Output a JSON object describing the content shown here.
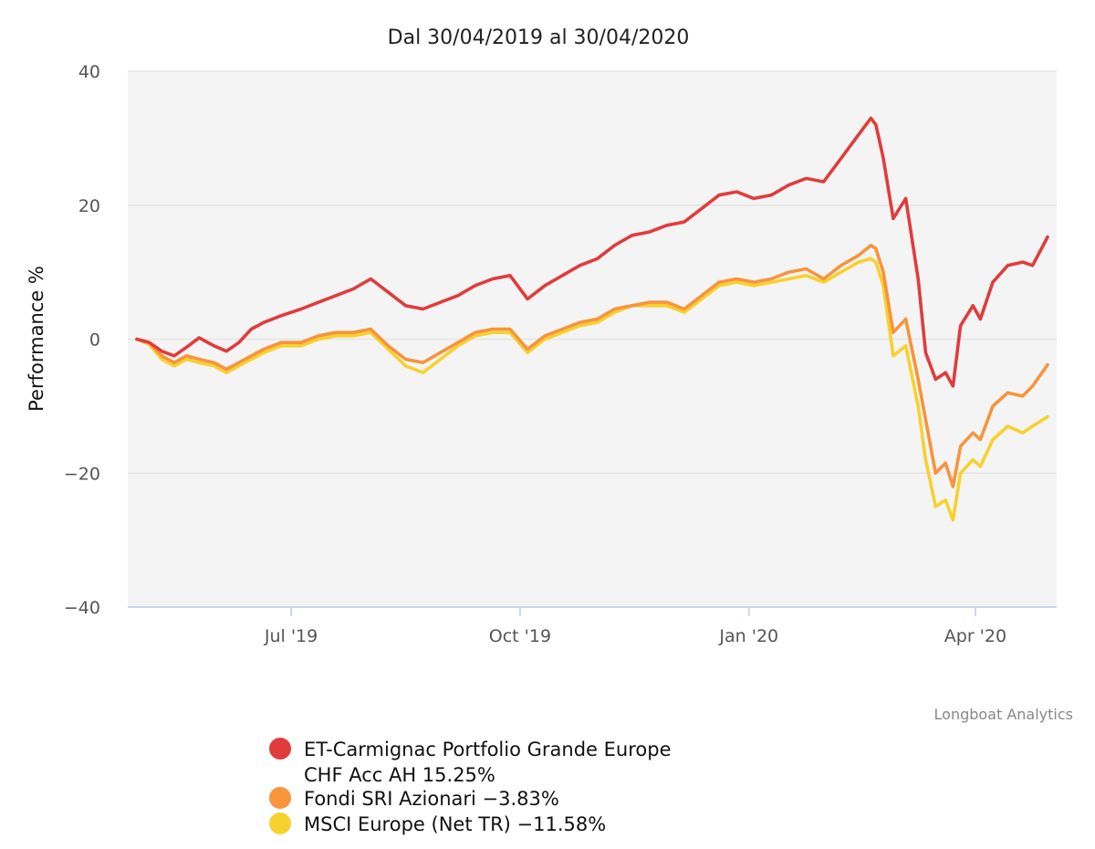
{
  "colors": {
    "plot_background": "#f4f4f4",
    "axis": "#ccd6eb",
    "grid": "#e4e4e4"
  },
  "chart_data": {
    "type": "line",
    "title": "Dal 30/04/2019 al 30/04/2020",
    "ylabel": "Performance %",
    "xlabel": "",
    "ylim": [
      -40,
      40
    ],
    "yticks": [
      40,
      20,
      0,
      -20,
      -40
    ],
    "yticklabels": [
      "40",
      "20",
      "0",
      "−20",
      "−40"
    ],
    "xlim": [
      "2019-04-30",
      "2020-04-30"
    ],
    "xticks": [
      {
        "date": "2019-07-01",
        "label": "Jul '19"
      },
      {
        "date": "2019-10-01",
        "label": "Oct '19"
      },
      {
        "date": "2020-01-01",
        "label": "Jan '20"
      },
      {
        "date": "2020-04-01",
        "label": "Apr '20"
      }
    ],
    "grid": true,
    "legend_position": "bottom",
    "credit": "Longboat Analytics",
    "series": [
      {
        "name": "ET-Carmignac Portfolio Grande Europe CHF Acc AH",
        "legend_lines": [
          "ET-Carmignac Portfolio Grande Europe",
          "CHF Acc AH 15.25%"
        ],
        "color": "#e03c3c",
        "points": [
          [
            "2019-04-30",
            0
          ],
          [
            "2019-05-05",
            -0.5
          ],
          [
            "2019-05-10",
            -1.8
          ],
          [
            "2019-05-15",
            -2.5
          ],
          [
            "2019-05-20",
            -1.2
          ],
          [
            "2019-05-25",
            0.2
          ],
          [
            "2019-05-31",
            -1.0
          ],
          [
            "2019-06-05",
            -1.8
          ],
          [
            "2019-06-10",
            -0.5
          ],
          [
            "2019-06-15",
            1.5
          ],
          [
            "2019-06-20",
            2.5
          ],
          [
            "2019-06-27",
            3.5
          ],
          [
            "2019-07-05",
            4.5
          ],
          [
            "2019-07-12",
            5.5
          ],
          [
            "2019-07-19",
            6.5
          ],
          [
            "2019-07-26",
            7.5
          ],
          [
            "2019-08-02",
            9.0
          ],
          [
            "2019-08-09",
            7.0
          ],
          [
            "2019-08-16",
            5.0
          ],
          [
            "2019-08-23",
            4.5
          ],
          [
            "2019-08-30",
            5.5
          ],
          [
            "2019-09-06",
            6.5
          ],
          [
            "2019-09-13",
            8.0
          ],
          [
            "2019-09-20",
            9.0
          ],
          [
            "2019-09-27",
            9.5
          ],
          [
            "2019-10-04",
            6.0
          ],
          [
            "2019-10-11",
            8.0
          ],
          [
            "2019-10-18",
            9.5
          ],
          [
            "2019-10-25",
            11.0
          ],
          [
            "2019-11-01",
            12.0
          ],
          [
            "2019-11-08",
            14.0
          ],
          [
            "2019-11-15",
            15.5
          ],
          [
            "2019-11-22",
            16.0
          ],
          [
            "2019-11-29",
            17.0
          ],
          [
            "2019-12-06",
            17.5
          ],
          [
            "2019-12-13",
            19.5
          ],
          [
            "2019-12-20",
            21.5
          ],
          [
            "2019-12-27",
            22.0
          ],
          [
            "2020-01-03",
            21.0
          ],
          [
            "2020-01-10",
            21.5
          ],
          [
            "2020-01-17",
            23.0
          ],
          [
            "2020-01-24",
            24.0
          ],
          [
            "2020-01-31",
            23.5
          ],
          [
            "2020-02-07",
            27.0
          ],
          [
            "2020-02-14",
            30.5
          ],
          [
            "2020-02-19",
            33.0
          ],
          [
            "2020-02-21",
            32.0
          ],
          [
            "2020-02-24",
            27.0
          ],
          [
            "2020-02-28",
            18.0
          ],
          [
            "2020-03-04",
            21.0
          ],
          [
            "2020-03-09",
            9.0
          ],
          [
            "2020-03-12",
            -2.0
          ],
          [
            "2020-03-16",
            -6.0
          ],
          [
            "2020-03-20",
            -5.0
          ],
          [
            "2020-03-23",
            -7.0
          ],
          [
            "2020-03-26",
            2.0
          ],
          [
            "2020-03-31",
            5.0
          ],
          [
            "2020-04-03",
            3.0
          ],
          [
            "2020-04-08",
            8.5
          ],
          [
            "2020-04-14",
            11.0
          ],
          [
            "2020-04-20",
            11.5
          ],
          [
            "2020-04-24",
            11.0
          ],
          [
            "2020-04-30",
            15.25
          ]
        ]
      },
      {
        "name": "Fondi SRI Azionari",
        "legend_lines": [
          "Fondi SRI Azionari −3.83%"
        ],
        "color": "#f7943c",
        "points": [
          [
            "2019-04-30",
            0
          ],
          [
            "2019-05-05",
            -0.5
          ],
          [
            "2019-05-10",
            -2.5
          ],
          [
            "2019-05-15",
            -3.5
          ],
          [
            "2019-05-20",
            -2.5
          ],
          [
            "2019-05-25",
            -3.0
          ],
          [
            "2019-05-31",
            -3.5
          ],
          [
            "2019-06-05",
            -4.5
          ],
          [
            "2019-06-10",
            -3.5
          ],
          [
            "2019-06-15",
            -2.5
          ],
          [
            "2019-06-20",
            -1.5
          ],
          [
            "2019-06-27",
            -0.5
          ],
          [
            "2019-07-05",
            -0.5
          ],
          [
            "2019-07-12",
            0.5
          ],
          [
            "2019-07-19",
            1.0
          ],
          [
            "2019-07-26",
            1.0
          ],
          [
            "2019-08-02",
            1.5
          ],
          [
            "2019-08-09",
            -1.0
          ],
          [
            "2019-08-16",
            -3.0
          ],
          [
            "2019-08-23",
            -3.5
          ],
          [
            "2019-08-30",
            -2.0
          ],
          [
            "2019-09-06",
            -0.5
          ],
          [
            "2019-09-13",
            1.0
          ],
          [
            "2019-09-20",
            1.5
          ],
          [
            "2019-09-27",
            1.5
          ],
          [
            "2019-10-04",
            -1.5
          ],
          [
            "2019-10-11",
            0.5
          ],
          [
            "2019-10-18",
            1.5
          ],
          [
            "2019-10-25",
            2.5
          ],
          [
            "2019-11-01",
            3.0
          ],
          [
            "2019-11-08",
            4.5
          ],
          [
            "2019-11-15",
            5.0
          ],
          [
            "2019-11-22",
            5.5
          ],
          [
            "2019-11-29",
            5.5
          ],
          [
            "2019-12-06",
            4.5
          ],
          [
            "2019-12-13",
            6.5
          ],
          [
            "2019-12-20",
            8.5
          ],
          [
            "2019-12-27",
            9.0
          ],
          [
            "2020-01-03",
            8.5
          ],
          [
            "2020-01-10",
            9.0
          ],
          [
            "2020-01-17",
            10.0
          ],
          [
            "2020-01-24",
            10.5
          ],
          [
            "2020-01-31",
            9.0
          ],
          [
            "2020-02-07",
            11.0
          ],
          [
            "2020-02-14",
            12.5
          ],
          [
            "2020-02-19",
            14.0
          ],
          [
            "2020-02-21",
            13.5
          ],
          [
            "2020-02-24",
            10.0
          ],
          [
            "2020-02-28",
            1.0
          ],
          [
            "2020-03-04",
            3.0
          ],
          [
            "2020-03-09",
            -6.0
          ],
          [
            "2020-03-12",
            -12.0
          ],
          [
            "2020-03-16",
            -20.0
          ],
          [
            "2020-03-20",
            -18.5
          ],
          [
            "2020-03-23",
            -22.0
          ],
          [
            "2020-03-26",
            -16.0
          ],
          [
            "2020-03-31",
            -14.0
          ],
          [
            "2020-04-03",
            -15.0
          ],
          [
            "2020-04-08",
            -10.0
          ],
          [
            "2020-04-14",
            -8.0
          ],
          [
            "2020-04-20",
            -8.5
          ],
          [
            "2020-04-24",
            -7.0
          ],
          [
            "2020-04-30",
            -3.83
          ]
        ]
      },
      {
        "name": "MSCI Europe (Net TR)",
        "legend_lines": [
          "MSCI Europe (Net TR) −11.58%"
        ],
        "color": "#f7d12e",
        "points": [
          [
            "2019-04-30",
            0
          ],
          [
            "2019-05-05",
            -0.8
          ],
          [
            "2019-05-10",
            -3.0
          ],
          [
            "2019-05-15",
            -4.0
          ],
          [
            "2019-05-20",
            -3.0
          ],
          [
            "2019-05-25",
            -3.5
          ],
          [
            "2019-05-31",
            -4.0
          ],
          [
            "2019-06-05",
            -5.0
          ],
          [
            "2019-06-10",
            -4.0
          ],
          [
            "2019-06-15",
            -3.0
          ],
          [
            "2019-06-20",
            -2.0
          ],
          [
            "2019-06-27",
            -1.0
          ],
          [
            "2019-07-05",
            -1.0
          ],
          [
            "2019-07-12",
            0.0
          ],
          [
            "2019-07-19",
            0.5
          ],
          [
            "2019-07-26",
            0.5
          ],
          [
            "2019-08-02",
            1.0
          ],
          [
            "2019-08-09",
            -1.5
          ],
          [
            "2019-08-16",
            -4.0
          ],
          [
            "2019-08-23",
            -5.0
          ],
          [
            "2019-08-30",
            -3.0
          ],
          [
            "2019-09-06",
            -1.0
          ],
          [
            "2019-09-13",
            0.5
          ],
          [
            "2019-09-20",
            1.0
          ],
          [
            "2019-09-27",
            1.0
          ],
          [
            "2019-10-04",
            -2.0
          ],
          [
            "2019-10-11",
            0.0
          ],
          [
            "2019-10-18",
            1.0
          ],
          [
            "2019-10-25",
            2.0
          ],
          [
            "2019-11-01",
            2.5
          ],
          [
            "2019-11-08",
            4.0
          ],
          [
            "2019-11-15",
            5.0
          ],
          [
            "2019-11-22",
            5.0
          ],
          [
            "2019-11-29",
            5.0
          ],
          [
            "2019-12-06",
            4.0
          ],
          [
            "2019-12-13",
            6.0
          ],
          [
            "2019-12-20",
            8.0
          ],
          [
            "2019-12-27",
            8.5
          ],
          [
            "2020-01-03",
            8.0
          ],
          [
            "2020-01-10",
            8.5
          ],
          [
            "2020-01-17",
            9.0
          ],
          [
            "2020-01-24",
            9.5
          ],
          [
            "2020-01-31",
            8.5
          ],
          [
            "2020-02-07",
            10.0
          ],
          [
            "2020-02-14",
            11.5
          ],
          [
            "2020-02-19",
            12.0
          ],
          [
            "2020-02-21",
            11.5
          ],
          [
            "2020-02-24",
            8.0
          ],
          [
            "2020-02-28",
            -2.5
          ],
          [
            "2020-03-04",
            -1.0
          ],
          [
            "2020-03-09",
            -10.0
          ],
          [
            "2020-03-12",
            -18.0
          ],
          [
            "2020-03-16",
            -25.0
          ],
          [
            "2020-03-20",
            -24.0
          ],
          [
            "2020-03-23",
            -27.0
          ],
          [
            "2020-03-26",
            -20.0
          ],
          [
            "2020-03-31",
            -18.0
          ],
          [
            "2020-04-03",
            -19.0
          ],
          [
            "2020-04-08",
            -15.0
          ],
          [
            "2020-04-14",
            -13.0
          ],
          [
            "2020-04-20",
            -14.0
          ],
          [
            "2020-04-24",
            -13.0
          ],
          [
            "2020-04-30",
            -11.58
          ]
        ]
      }
    ]
  }
}
